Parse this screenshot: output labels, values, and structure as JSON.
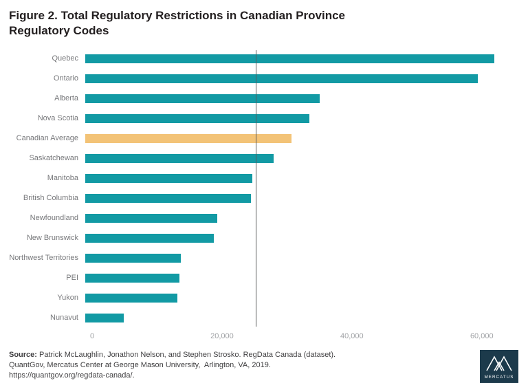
{
  "title": {
    "line1": "Figure 2. Total Regulatory Restrictions in Canadian Province",
    "line2": "Regulatory Codes"
  },
  "chart_data": {
    "type": "bar",
    "orientation": "horizontal",
    "title": "Figure 2. Total Regulatory Restrictions in Canadian Province Regulatory Codes",
    "categories": [
      "Quebec",
      "Ontario",
      "Alberta",
      "Nova Scotia",
      "Canadian Average",
      "Saskatchewan",
      "Manitoba",
      "British Columbia",
      "Newfoundland",
      "New Brunswick",
      "Northwest Territories",
      "PEI",
      "Yukon",
      "Nunavut"
    ],
    "values": [
      62000,
      59500,
      35500,
      34000,
      31300,
      28500,
      25300,
      25100,
      20000,
      19500,
      14500,
      14300,
      14000,
      5800
    ],
    "highlight_category": "Canadian Average",
    "bar_color": "#129aa4",
    "highlight_color": "#f3c377",
    "reference_line_x": 25200,
    "xlim": [
      0,
      65000
    ],
    "x_ticks": [
      0,
      20000,
      40000,
      60000
    ],
    "x_tick_labels": [
      "0",
      "20,000",
      "40,000",
      "60,000"
    ],
    "grid": false,
    "legend": "none",
    "xlabel": "",
    "ylabel": ""
  },
  "footer": {
    "source_label": "Source:",
    "source_rest": " Patrick McLaughlin, Jonathon Nelson, and Stephen Strosko. RegData Canada (dataset).",
    "line2": "QuantGov, Mercatus Center at George Mason University,  Arlington, VA, 2019.",
    "line3": "https://quantgov.org/regdata-canada/.",
    "logo_text": "MERCATUS",
    "logo_color": "#1c3a4b"
  }
}
